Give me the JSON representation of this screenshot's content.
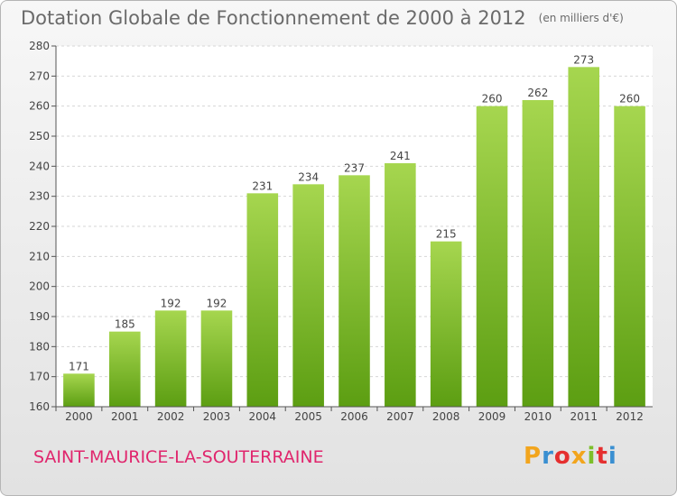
{
  "title": {
    "main": "Dotation Globale de Fonctionnement de 2000 à 2012",
    "unit": "(en milliers d'€)"
  },
  "commune": "SAINT-MAURICE-LA-SOUTERRAINE",
  "logo": {
    "letters": [
      "P",
      "r",
      "o",
      "x",
      "i",
      "t",
      "i"
    ],
    "colors": [
      "#f2a51d",
      "#3a8fd1",
      "#e52f2f",
      "#f2a51d",
      "#7cbf2a",
      "#e52f2f",
      "#3a8fd1"
    ]
  },
  "chart_data": {
    "type": "bar",
    "categories": [
      "2000",
      "2001",
      "2002",
      "2003",
      "2004",
      "2005",
      "2006",
      "2007",
      "2008",
      "2009",
      "2010",
      "2011",
      "2012"
    ],
    "values": [
      171,
      185,
      192,
      192,
      231,
      234,
      237,
      241,
      215,
      260,
      262,
      273,
      260
    ],
    "ylim": [
      160,
      280
    ],
    "yticks": [
      160,
      170,
      180,
      190,
      200,
      210,
      220,
      230,
      240,
      250,
      260,
      270,
      280
    ],
    "grid": true,
    "colors": {
      "bar_top": "#a6d64f",
      "bar_bottom": "#5c9e12",
      "grid": "#d6d6d6",
      "axis": "#555555",
      "plot_bg": "#ffffff"
    }
  }
}
